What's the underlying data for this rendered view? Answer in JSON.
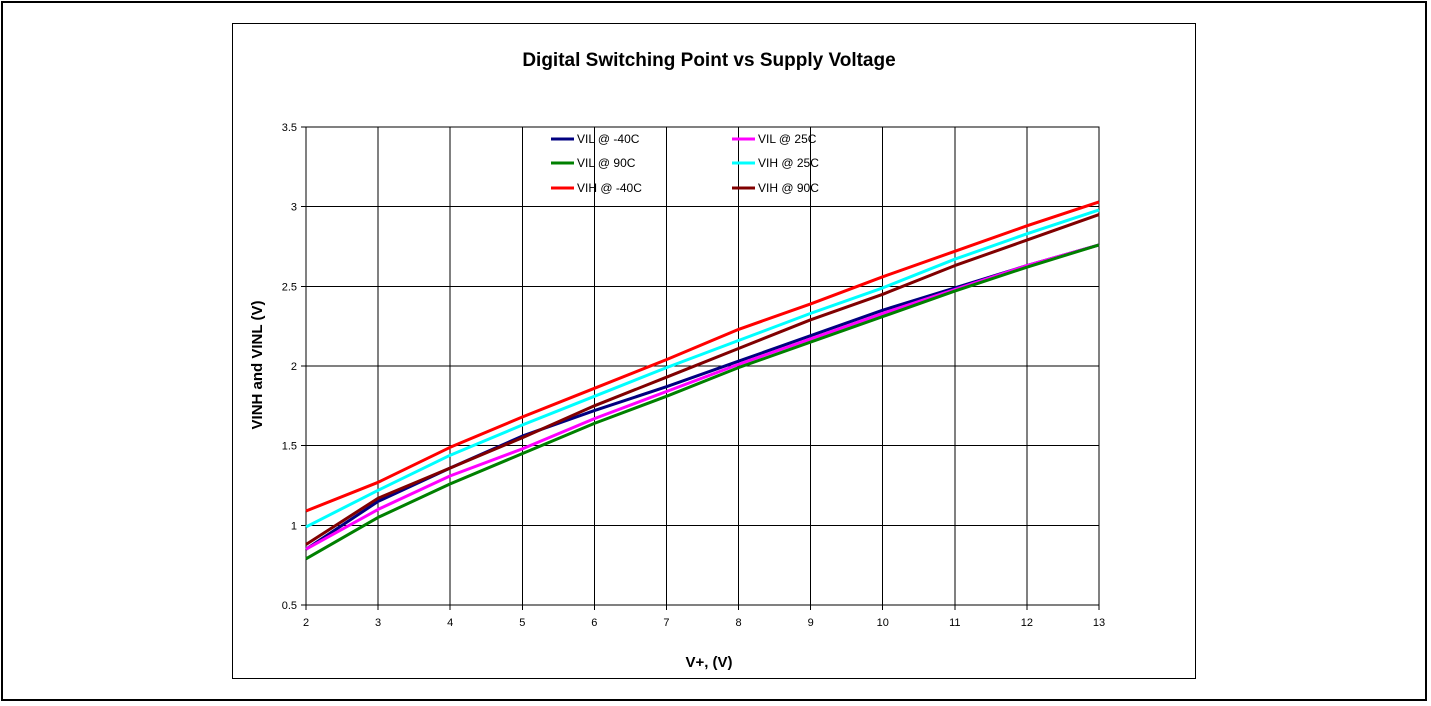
{
  "chart_data": {
    "type": "line",
    "title": "Digital Switching Point vs Supply Voltage",
    "xlabel": "V+, (V)",
    "ylabel": "VINH and VINL (V)",
    "xlim": [
      2,
      13
    ],
    "ylim": [
      0.5,
      3.5
    ],
    "x_ticks": [
      "2",
      "3",
      "4",
      "5",
      "6",
      "7",
      "8",
      "9",
      "10",
      "11",
      "12",
      "13"
    ],
    "y_ticks": [
      "0.5",
      "1",
      "1.5",
      "2",
      "2.5",
      "3",
      "3.5"
    ],
    "grid": true,
    "legend_position": "top-center",
    "x": [
      2,
      3,
      4,
      5,
      6,
      7,
      8,
      9,
      10,
      11,
      12,
      13
    ],
    "series": [
      {
        "name": "VIL @ -40C",
        "color": "#000080",
        "values": [
          0.85,
          1.15,
          1.36,
          1.56,
          1.72,
          1.87,
          2.03,
          2.19,
          2.35,
          2.49,
          2.63,
          2.76
        ]
      },
      {
        "name": "VIL @ 25C",
        "color": "#ff00ff",
        "values": [
          0.85,
          1.1,
          1.31,
          1.48,
          1.67,
          1.84,
          2.01,
          2.17,
          2.33,
          2.48,
          2.63,
          2.76
        ]
      },
      {
        "name": "VIL @ 90C",
        "color": "#008000",
        "values": [
          0.79,
          1.05,
          1.26,
          1.45,
          1.64,
          1.81,
          1.99,
          2.15,
          2.31,
          2.47,
          2.62,
          2.76
        ]
      },
      {
        "name": "VIH @ 25C",
        "color": "#00ffff",
        "values": [
          0.99,
          1.22,
          1.44,
          1.63,
          1.81,
          1.99,
          2.16,
          2.33,
          2.49,
          2.67,
          2.83,
          2.98
        ]
      },
      {
        "name": "VIH @ -40C",
        "color": "#ff0000",
        "values": [
          1.09,
          1.27,
          1.49,
          1.68,
          1.86,
          2.04,
          2.23,
          2.39,
          2.56,
          2.72,
          2.88,
          3.03
        ]
      },
      {
        "name": "VIH @ 90C",
        "color": "#800000",
        "values": [
          0.88,
          1.17,
          1.36,
          1.55,
          1.75,
          1.93,
          2.11,
          2.29,
          2.45,
          2.63,
          2.79,
          2.95
        ]
      }
    ],
    "legend_order": [
      "VIL @ -40C",
      "VIL @ 25C",
      "VIL @ 90C",
      "VIH @ 25C",
      "VIH @ -40C",
      "VIH @ 90C"
    ]
  }
}
